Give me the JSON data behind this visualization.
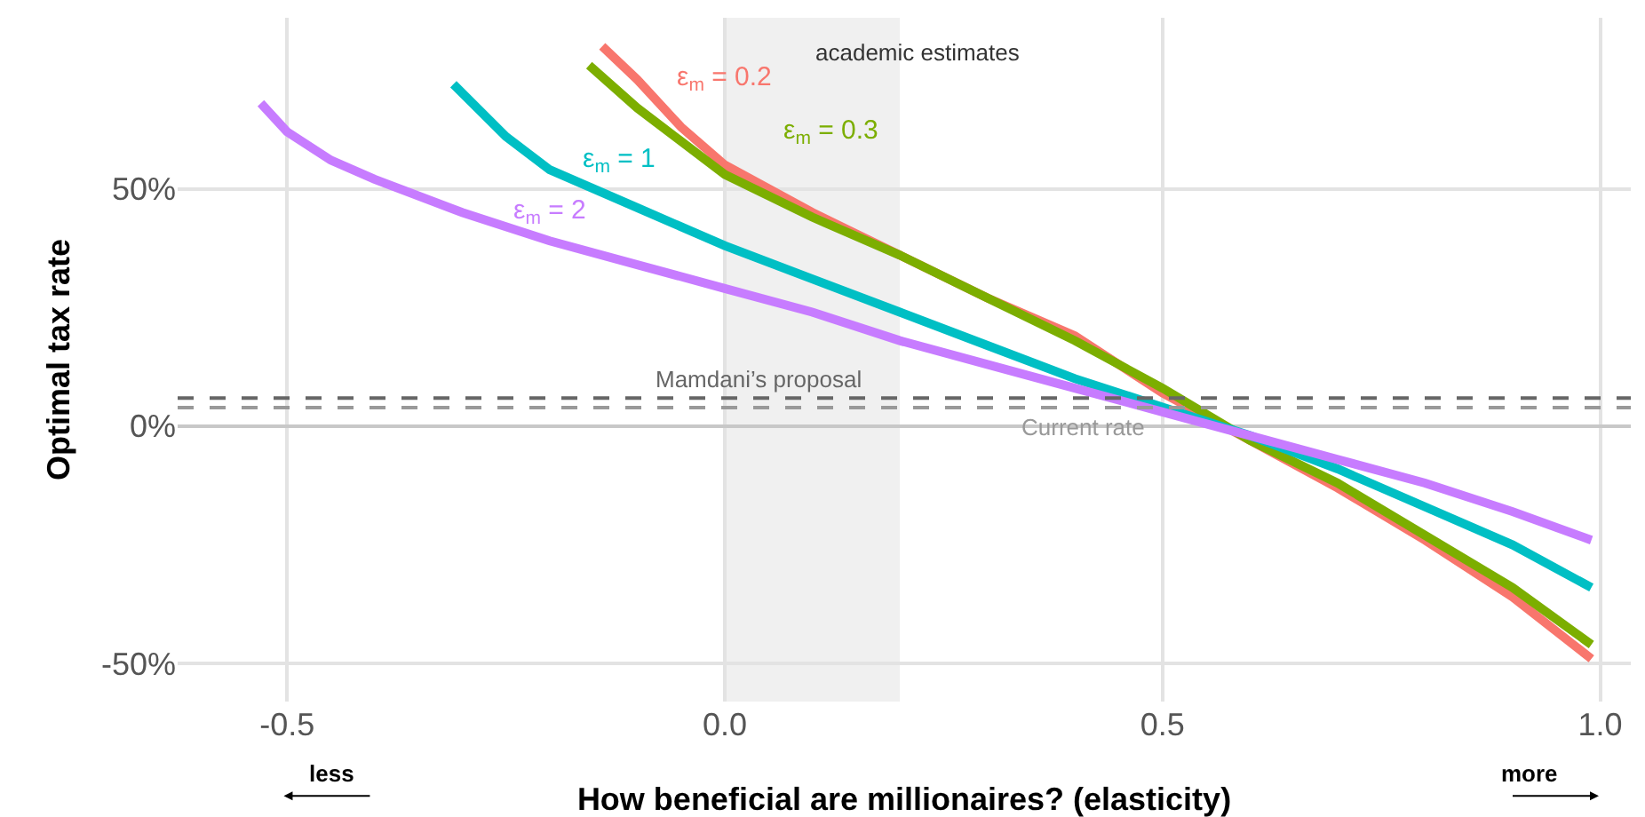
{
  "chart_data": {
    "type": "line",
    "xlabel": "How beneficial are millionaires? (elasticity)",
    "ylabel": "Optimal tax rate",
    "xlim": [
      -0.625,
      1.035
    ],
    "ylim": [
      -58,
      86
    ],
    "xticks": [
      -0.5,
      {
        "value": 0,
        "label": "0.0"
      },
      0.5,
      {
        "value": 1,
        "label": "1.0"
      }
    ],
    "yticks": [
      {
        "value": -50,
        "label": "-50%"
      },
      {
        "value": 0,
        "label": "0%"
      },
      {
        "value": 50,
        "label": "50%"
      }
    ],
    "grid": true,
    "legend": false,
    "line_style": "solid",
    "marker": "none",
    "series": [
      {
        "name": "ε$_{m}$ = 0.2",
        "color": "#f8766d",
        "x": [
          -0.14,
          -0.1,
          -0.05,
          0,
          0.1,
          0.2,
          0.3,
          0.4,
          0.5,
          0.6,
          0.7,
          0.8,
          0.9,
          0.99
        ],
        "values": [
          80,
          73,
          63,
          55,
          45,
          36,
          27,
          19,
          7,
          -3,
          -13,
          -24,
          -36,
          -49
        ]
      },
      {
        "name": "ε$_{m}$ = 0.3",
        "color": "#7cae00",
        "x": [
          -0.155,
          -0.1,
          -0.05,
          0,
          0.1,
          0.2,
          0.3,
          0.4,
          0.5,
          0.6,
          0.7,
          0.8,
          0.9,
          0.99
        ],
        "values": [
          76,
          67,
          60,
          53,
          44,
          36,
          27,
          18,
          8,
          -3,
          -12,
          -23,
          -34,
          -46
        ]
      },
      {
        "name": "ε$_{m}$ = 1",
        "color": "#00bfc4",
        "x": [
          -0.31,
          -0.25,
          -0.2,
          -0.1,
          0,
          0.1,
          0.2,
          0.3,
          0.4,
          0.5,
          0.6,
          0.7,
          0.8,
          0.9,
          0.99
        ],
        "values": [
          72,
          61,
          54,
          46,
          38,
          31,
          24,
          17,
          10,
          4,
          -2,
          -9,
          -17,
          -25,
          -34
        ]
      },
      {
        "name": "ε$_{m}$ = 2",
        "color": "#c77cff",
        "x": [
          -0.53,
          -0.5,
          -0.45,
          -0.4,
          -0.3,
          -0.2,
          -0.1,
          0,
          0.1,
          0.2,
          0.3,
          0.4,
          0.5,
          0.6,
          0.7,
          0.8,
          0.9,
          0.99
        ],
        "values": [
          68,
          62,
          56,
          52,
          45,
          39,
          34,
          29,
          24,
          18,
          13,
          8,
          3,
          -2,
          -7,
          -12,
          -18,
          -24
        ]
      }
    ],
    "ref_lines": [
      {
        "axis": "y",
        "value": 5.9,
        "label": "Mamdani’s proposal",
        "color": "#666666",
        "line_style": "dashed"
      },
      {
        "axis": "y",
        "value": 3.9,
        "label": "Current rate",
        "color": "#999999",
        "line_style": "dashed"
      }
    ],
    "bands": [
      {
        "axis": "x",
        "from": 0,
        "to": 0.2,
        "label": "academic estimates",
        "color": "#f0f0f0"
      }
    ],
    "annotations": [
      "less",
      "more"
    ]
  }
}
